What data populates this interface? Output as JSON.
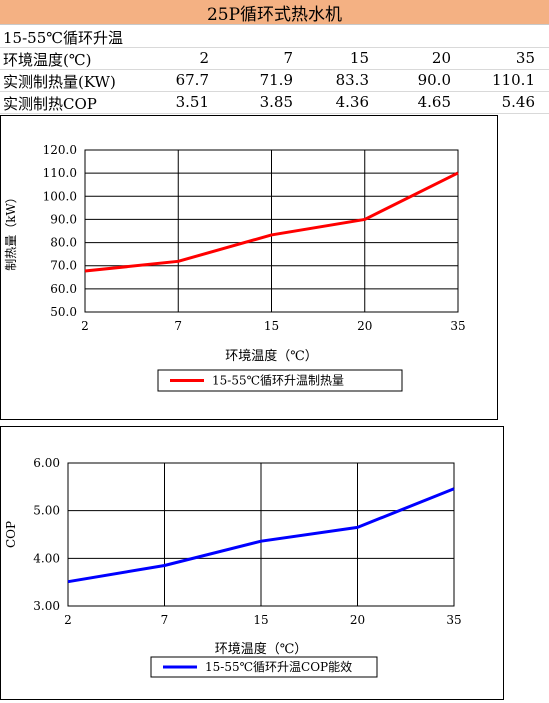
{
  "title": "25P循环式热水机",
  "table": {
    "condition": "15-55℃循环升温",
    "rows": [
      {
        "label": "环境温度(℃)",
        "values": [
          "2",
          "7",
          "15",
          "20",
          "35"
        ]
      },
      {
        "label": "实测制热量(KW)",
        "values": [
          "67.7",
          "71.9",
          "83.3",
          "90.0",
          "110.1"
        ]
      },
      {
        "label": "实测制热COP",
        "values": [
          "3.51",
          "3.85",
          "4.36",
          "4.65",
          "5.46"
        ]
      }
    ]
  },
  "chart_data": [
    {
      "type": "line",
      "categories": [
        "2",
        "7",
        "15",
        "20",
        "35"
      ],
      "series": [
        {
          "name": "15-55℃循环升温制热量",
          "values": [
            67.7,
            71.9,
            83.3,
            90.0,
            110.1
          ],
          "color": "#ff0000"
        }
      ],
      "xlabel": "环境温度（℃）",
      "ylabel": "制热量（kW）",
      "ylim": [
        50,
        120
      ],
      "yticks": [
        "50.0",
        "60.0",
        "70.0",
        "80.0",
        "90.0",
        "100.0",
        "110.0",
        "120.0"
      ],
      "grid": true,
      "legend": "bottom"
    },
    {
      "type": "line",
      "categories": [
        "2",
        "7",
        "15",
        "20",
        "35"
      ],
      "series": [
        {
          "name": "15-55℃循环升温COP能效",
          "values": [
            3.51,
            3.85,
            4.36,
            4.65,
            5.46
          ],
          "color": "#0000ff"
        }
      ],
      "xlabel": "环境温度（℃）",
      "ylabel": "COP",
      "ylim": [
        3,
        6
      ],
      "yticks": [
        "3.00",
        "4.00",
        "5.00",
        "6.00"
      ],
      "grid": true,
      "legend": "bottom"
    }
  ]
}
